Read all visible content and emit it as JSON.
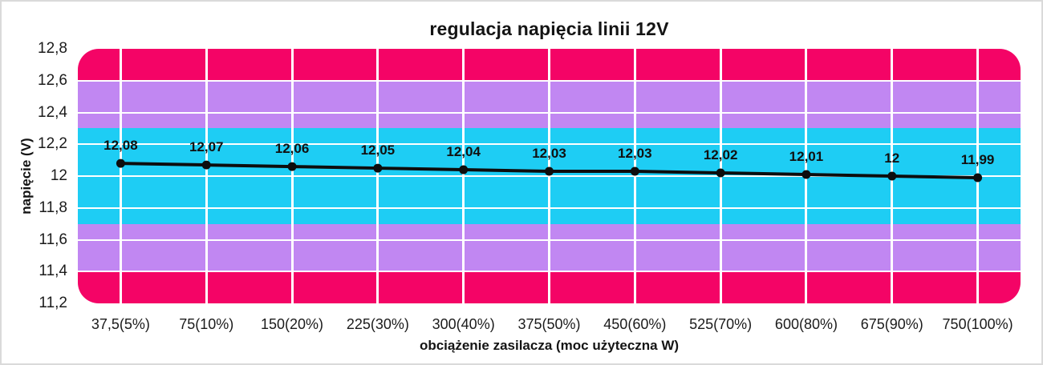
{
  "page": {
    "background": "#ffffff",
    "frame_border_color": "#dadada"
  },
  "chart": {
    "title": "regulacja napięcia linii 12V",
    "y_axis_title": "napięcie (V)",
    "x_axis_title": "obciążenie zasilacza (moc użyteczna W)"
  },
  "chart_data": {
    "type": "line",
    "title": "regulacja napięcia linii 12V",
    "xlabel": "obciążenie zasilacza (moc użyteczna W)",
    "ylabel": "napięcie (V)",
    "categories": [
      "37,5(5%)",
      "75(10%)",
      "150(20%)",
      "225(30%)",
      "300(40%)",
      "375(50%)",
      "450(60%)",
      "525(70%)",
      "600(80%)",
      "675(90%)",
      "750(100%)"
    ],
    "values": [
      12.08,
      12.07,
      12.06,
      12.05,
      12.04,
      12.03,
      12.03,
      12.02,
      12.01,
      12,
      11.99
    ],
    "point_labels": [
      "12,08",
      "12,07",
      "12,06",
      "12,05",
      "12,04",
      "12,03",
      "12,03",
      "12,02",
      "12,01",
      "12",
      "11,99"
    ],
    "ylim": [
      11.2,
      12.8
    ],
    "y_ticks": [
      {
        "value": 12.8,
        "label": "12,8"
      },
      {
        "value": 12.6,
        "label": "12,6"
      },
      {
        "value": 12.4,
        "label": "12,4"
      },
      {
        "value": 12.2,
        "label": "12,2"
      },
      {
        "value": 12,
        "label": "12"
      },
      {
        "value": 11.8,
        "label": "11,8"
      },
      {
        "value": 11.6,
        "label": "11,6"
      },
      {
        "value": 11.4,
        "label": "11,4"
      },
      {
        "value": 11.2,
        "label": "11,2"
      }
    ],
    "h_gridlines": [
      12.6,
      12.4,
      12.2,
      12,
      11.8,
      11.6,
      11.4
    ],
    "grid": true,
    "legend": "none",
    "gridline_color": "#ffffff",
    "line_color": "#0d0d0d",
    "marker_color": "#0d0d0d",
    "bands": [
      {
        "from": 12.6,
        "to": 12.8,
        "color": "#f40466"
      },
      {
        "from": 12.3,
        "to": 12.6,
        "color": "#c187f2"
      },
      {
        "from": 11.7,
        "to": 12.3,
        "color": "#1ecdf4"
      },
      {
        "from": 11.4,
        "to": 11.7,
        "color": "#c187f2"
      },
      {
        "from": 11.2,
        "to": 11.4,
        "color": "#f40466"
      }
    ]
  }
}
